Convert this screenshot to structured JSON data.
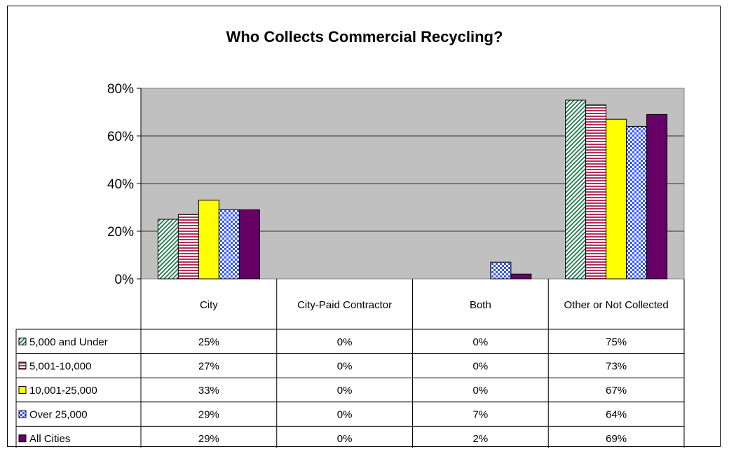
{
  "chart_data": {
    "type": "bar",
    "title": "Who Collects Commercial Recycling?",
    "categories": [
      "City",
      "City-Paid Contractor",
      "Both",
      "Other or Not Collected"
    ],
    "y_axis": {
      "min": 0,
      "max": 80,
      "step": 20,
      "unit": "%",
      "tick_labels": [
        "0%",
        "20%",
        "40%",
        "60%",
        "80%"
      ]
    },
    "grid": true,
    "legend": "data-table-left",
    "series": [
      {
        "name": "5,000 and Under",
        "values": [
          25,
          0,
          0,
          75
        ],
        "labels": [
          "25%",
          "0%",
          "0%",
          "75%"
        ],
        "color": "#1f7a4a",
        "pattern": "diagonal-stripes"
      },
      {
        "name": "5,001-10,000",
        "values": [
          27,
          0,
          0,
          73
        ],
        "labels": [
          "27%",
          "0%",
          "0%",
          "73%"
        ],
        "color": "#b03060",
        "pattern": "horizontal-stripes"
      },
      {
        "name": "10,001-25,000",
        "values": [
          33,
          0,
          0,
          67
        ],
        "labels": [
          "33%",
          "0%",
          "0%",
          "67%"
        ],
        "color": "#ffff00",
        "pattern": "solid"
      },
      {
        "name": "Over 25,000",
        "values": [
          29,
          0,
          7,
          64
        ],
        "labels": [
          "29%",
          "0%",
          "7%",
          "64%"
        ],
        "color": "#3355ff",
        "pattern": "checker"
      },
      {
        "name": "All Cities",
        "values": [
          29,
          0,
          2,
          69
        ],
        "labels": [
          "29%",
          "0%",
          "2%",
          "69%"
        ],
        "color": "#660066",
        "pattern": "solid"
      }
    ],
    "colors": {
      "plot_background": "#c0c0c0",
      "gridline": "#000000"
    }
  }
}
